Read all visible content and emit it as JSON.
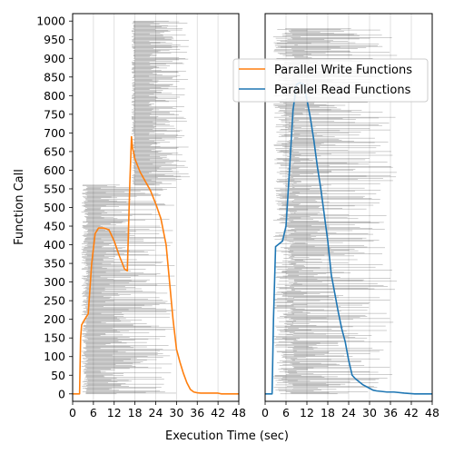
{
  "chart_data": [
    {
      "type": "line",
      "panel": "left",
      "xlabel": "",
      "ylabel": "Function Call",
      "xlim": [
        0,
        48
      ],
      "ylim": [
        -20,
        1020
      ],
      "x_ticks": [
        0,
        6,
        12,
        18,
        24,
        30,
        36,
        42,
        48
      ],
      "y_ticks": [
        0,
        50,
        100,
        150,
        200,
        250,
        300,
        350,
        400,
        450,
        500,
        550,
        600,
        650,
        700,
        750,
        800,
        850,
        900,
        950,
        1000
      ],
      "grid": "vertical",
      "series": [
        {
          "name": "Parallel Write Functions",
          "color": "#ff7f0e",
          "x": [
            0,
            2,
            2.3,
            2.6,
            3.5,
            4.5,
            5.5,
            6.5,
            7.5,
            9,
            10.5,
            12,
            13.5,
            15,
            15.8,
            16.5,
            17,
            17.3,
            18,
            19.5,
            21,
            22.5,
            24,
            25.5,
            27,
            28,
            29,
            30,
            31,
            32,
            33,
            34,
            35,
            36,
            37,
            39,
            41,
            42,
            43,
            48
          ],
          "y": [
            0,
            0,
            150,
            185,
            200,
            215,
            350,
            430,
            445,
            445,
            440,
            410,
            370,
            335,
            330,
            560,
            690,
            660,
            630,
            595,
            570,
            545,
            510,
            470,
            400,
            300,
            200,
            120,
            85,
            55,
            30,
            12,
            5,
            3,
            2,
            2,
            2,
            2,
            0,
            0
          ]
        }
      ],
      "bars": {
        "color": "#000000",
        "description_groups": [
          {
            "y_range": [
              0,
              560
            ],
            "start_range": [
              2.5,
              4.5
            ],
            "end_range": [
              8,
              30
            ]
          },
          {
            "y_range": [
              560,
              1000
            ],
            "start_range": [
              17,
              18
            ],
            "end_range": [
              22,
              34
            ]
          }
        ]
      }
    },
    {
      "type": "line",
      "panel": "right",
      "xlabel": "",
      "ylabel": "",
      "xlim": [
        0,
        48
      ],
      "ylim": [
        -20,
        1020
      ],
      "x_ticks": [
        0,
        6,
        12,
        18,
        24,
        30,
        36,
        42,
        48
      ],
      "y_ticks": [],
      "grid": "vertical",
      "series": [
        {
          "name": "Parallel Read Functions",
          "color": "#1f77b4",
          "x": [
            0,
            2,
            2.4,
            3,
            5,
            6,
            7,
            8,
            9,
            10,
            11,
            12,
            13,
            14,
            15,
            16,
            17,
            18,
            19,
            20,
            21,
            22,
            23,
            24,
            25,
            26,
            28,
            30,
            31,
            32,
            35,
            37,
            40,
            43,
            48
          ],
          "y": [
            0,
            0,
            200,
            395,
            410,
            450,
            600,
            760,
            830,
            835,
            830,
            790,
            740,
            680,
            610,
            550,
            480,
            410,
            320,
            270,
            220,
            175,
            140,
            90,
            50,
            40,
            25,
            15,
            10,
            8,
            5,
            5,
            2,
            0,
            0
          ]
        }
      ],
      "bars": {
        "color": "#000000",
        "description_groups": [
          {
            "y_range": [
              0,
              980
            ],
            "start_range": [
              2.3,
              8.5
            ],
            "end_range": [
              8,
              38
            ]
          }
        ]
      }
    }
  ],
  "axes": {
    "shared_xlabel": "Execution Time (sec)",
    "ylabel": "Function Call",
    "x_tick_labels": [
      "0",
      "6",
      "12",
      "18",
      "24",
      "30",
      "36",
      "42",
      "48"
    ],
    "y_tick_labels": [
      "0",
      "50",
      "100",
      "150",
      "200",
      "250",
      "300",
      "350",
      "400",
      "450",
      "500",
      "550",
      "600",
      "650",
      "700",
      "750",
      "800",
      "850",
      "900",
      "950",
      "1000"
    ]
  },
  "legend": {
    "placement": "upper-right-of-right-panel",
    "entries": [
      {
        "label": "Parallel Write Functions",
        "color": "#ff7f0e"
      },
      {
        "label": "Parallel Read Functions",
        "color": "#1f77b4"
      }
    ]
  }
}
